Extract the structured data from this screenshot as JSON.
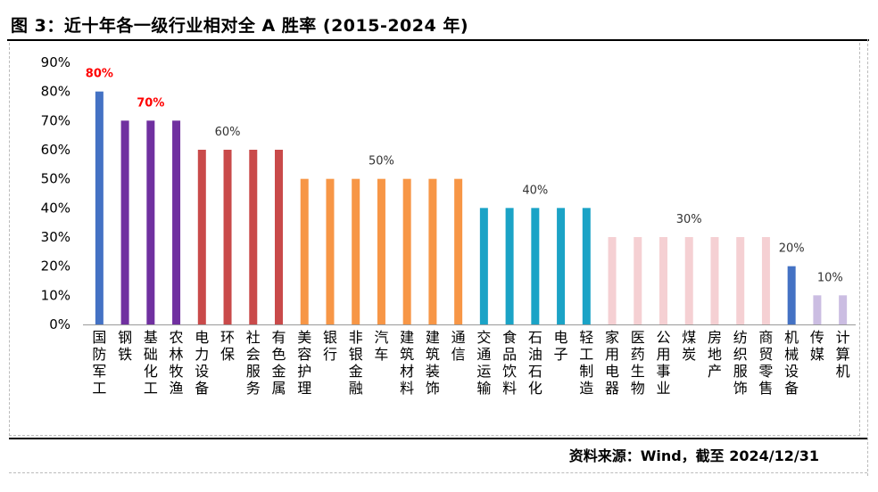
{
  "header": {
    "title": "图 3：近十年各一级行业相对全 A 胜率 (2015-2024 年)"
  },
  "footer": {
    "source": "资料来源：Wind，截至 2024/12/31"
  },
  "chart_data": {
    "type": "bar",
    "ylim": [
      0,
      90
    ],
    "y_ticks": [
      "0%",
      "10%",
      "20%",
      "30%",
      "40%",
      "50%",
      "60%",
      "70%",
      "80%",
      "90%"
    ],
    "grid": false,
    "legend": "none",
    "categories": [
      "国防军工",
      "钢铁",
      "基础化工",
      "农林牧渔",
      "电力设备",
      "环保",
      "社会服务",
      "有色金属",
      "美容护理",
      "银行",
      "非银金融",
      "汽车",
      "建筑材料",
      "建筑装饰",
      "通信",
      "交通运输",
      "食品饮料",
      "石油石化",
      "电子",
      "轻工制造",
      "家用电器",
      "医药生物",
      "公用事业",
      "煤炭",
      "房地产",
      "纺织服饰",
      "商贸零售",
      "机械设备",
      "传媒",
      "计算机"
    ],
    "values": [
      80,
      70,
      70,
      70,
      60,
      60,
      60,
      60,
      50,
      50,
      50,
      50,
      50,
      50,
      50,
      40,
      40,
      40,
      40,
      40,
      30,
      30,
      30,
      30,
      30,
      30,
      30,
      20,
      10,
      10
    ],
    "colors": [
      "#4472C4",
      "#7030A0",
      "#7030A0",
      "#7030A0",
      "#C94A4A",
      "#C94A4A",
      "#C94A4A",
      "#C94A4A",
      "#F79646",
      "#F79646",
      "#F79646",
      "#F79646",
      "#F79646",
      "#F79646",
      "#F79646",
      "#1BA3C6",
      "#1BA3C6",
      "#1BA3C6",
      "#1BA3C6",
      "#1BA3C6",
      "#F5D0D3",
      "#F5D0D3",
      "#F5D0D3",
      "#F5D0D3",
      "#F5D0D3",
      "#F5D0D3",
      "#F5D0D3",
      "#4472C4",
      "#CBBDE2",
      "#CBBDE2"
    ],
    "annotations": [
      {
        "text": "80%",
        "index": 0,
        "value": 80,
        "color": "#FF0000",
        "bold": true
      },
      {
        "text": "70%",
        "index": 2,
        "value": 70,
        "color": "#FF0000",
        "bold": true
      },
      {
        "text": "60%",
        "index": 5,
        "value": 60,
        "color": "#333333",
        "bold": false
      },
      {
        "text": "50%",
        "index": 11,
        "value": 50,
        "color": "#333333",
        "bold": false
      },
      {
        "text": "40%",
        "index": 17,
        "value": 40,
        "color": "#333333",
        "bold": false
      },
      {
        "text": "30%",
        "index": 23,
        "value": 30,
        "color": "#333333",
        "bold": false
      },
      {
        "text": "20%",
        "index": 27,
        "value": 20,
        "color": "#333333",
        "bold": false
      },
      {
        "text": "10%",
        "index": 28.5,
        "value": 10,
        "color": "#333333",
        "bold": false
      }
    ]
  }
}
